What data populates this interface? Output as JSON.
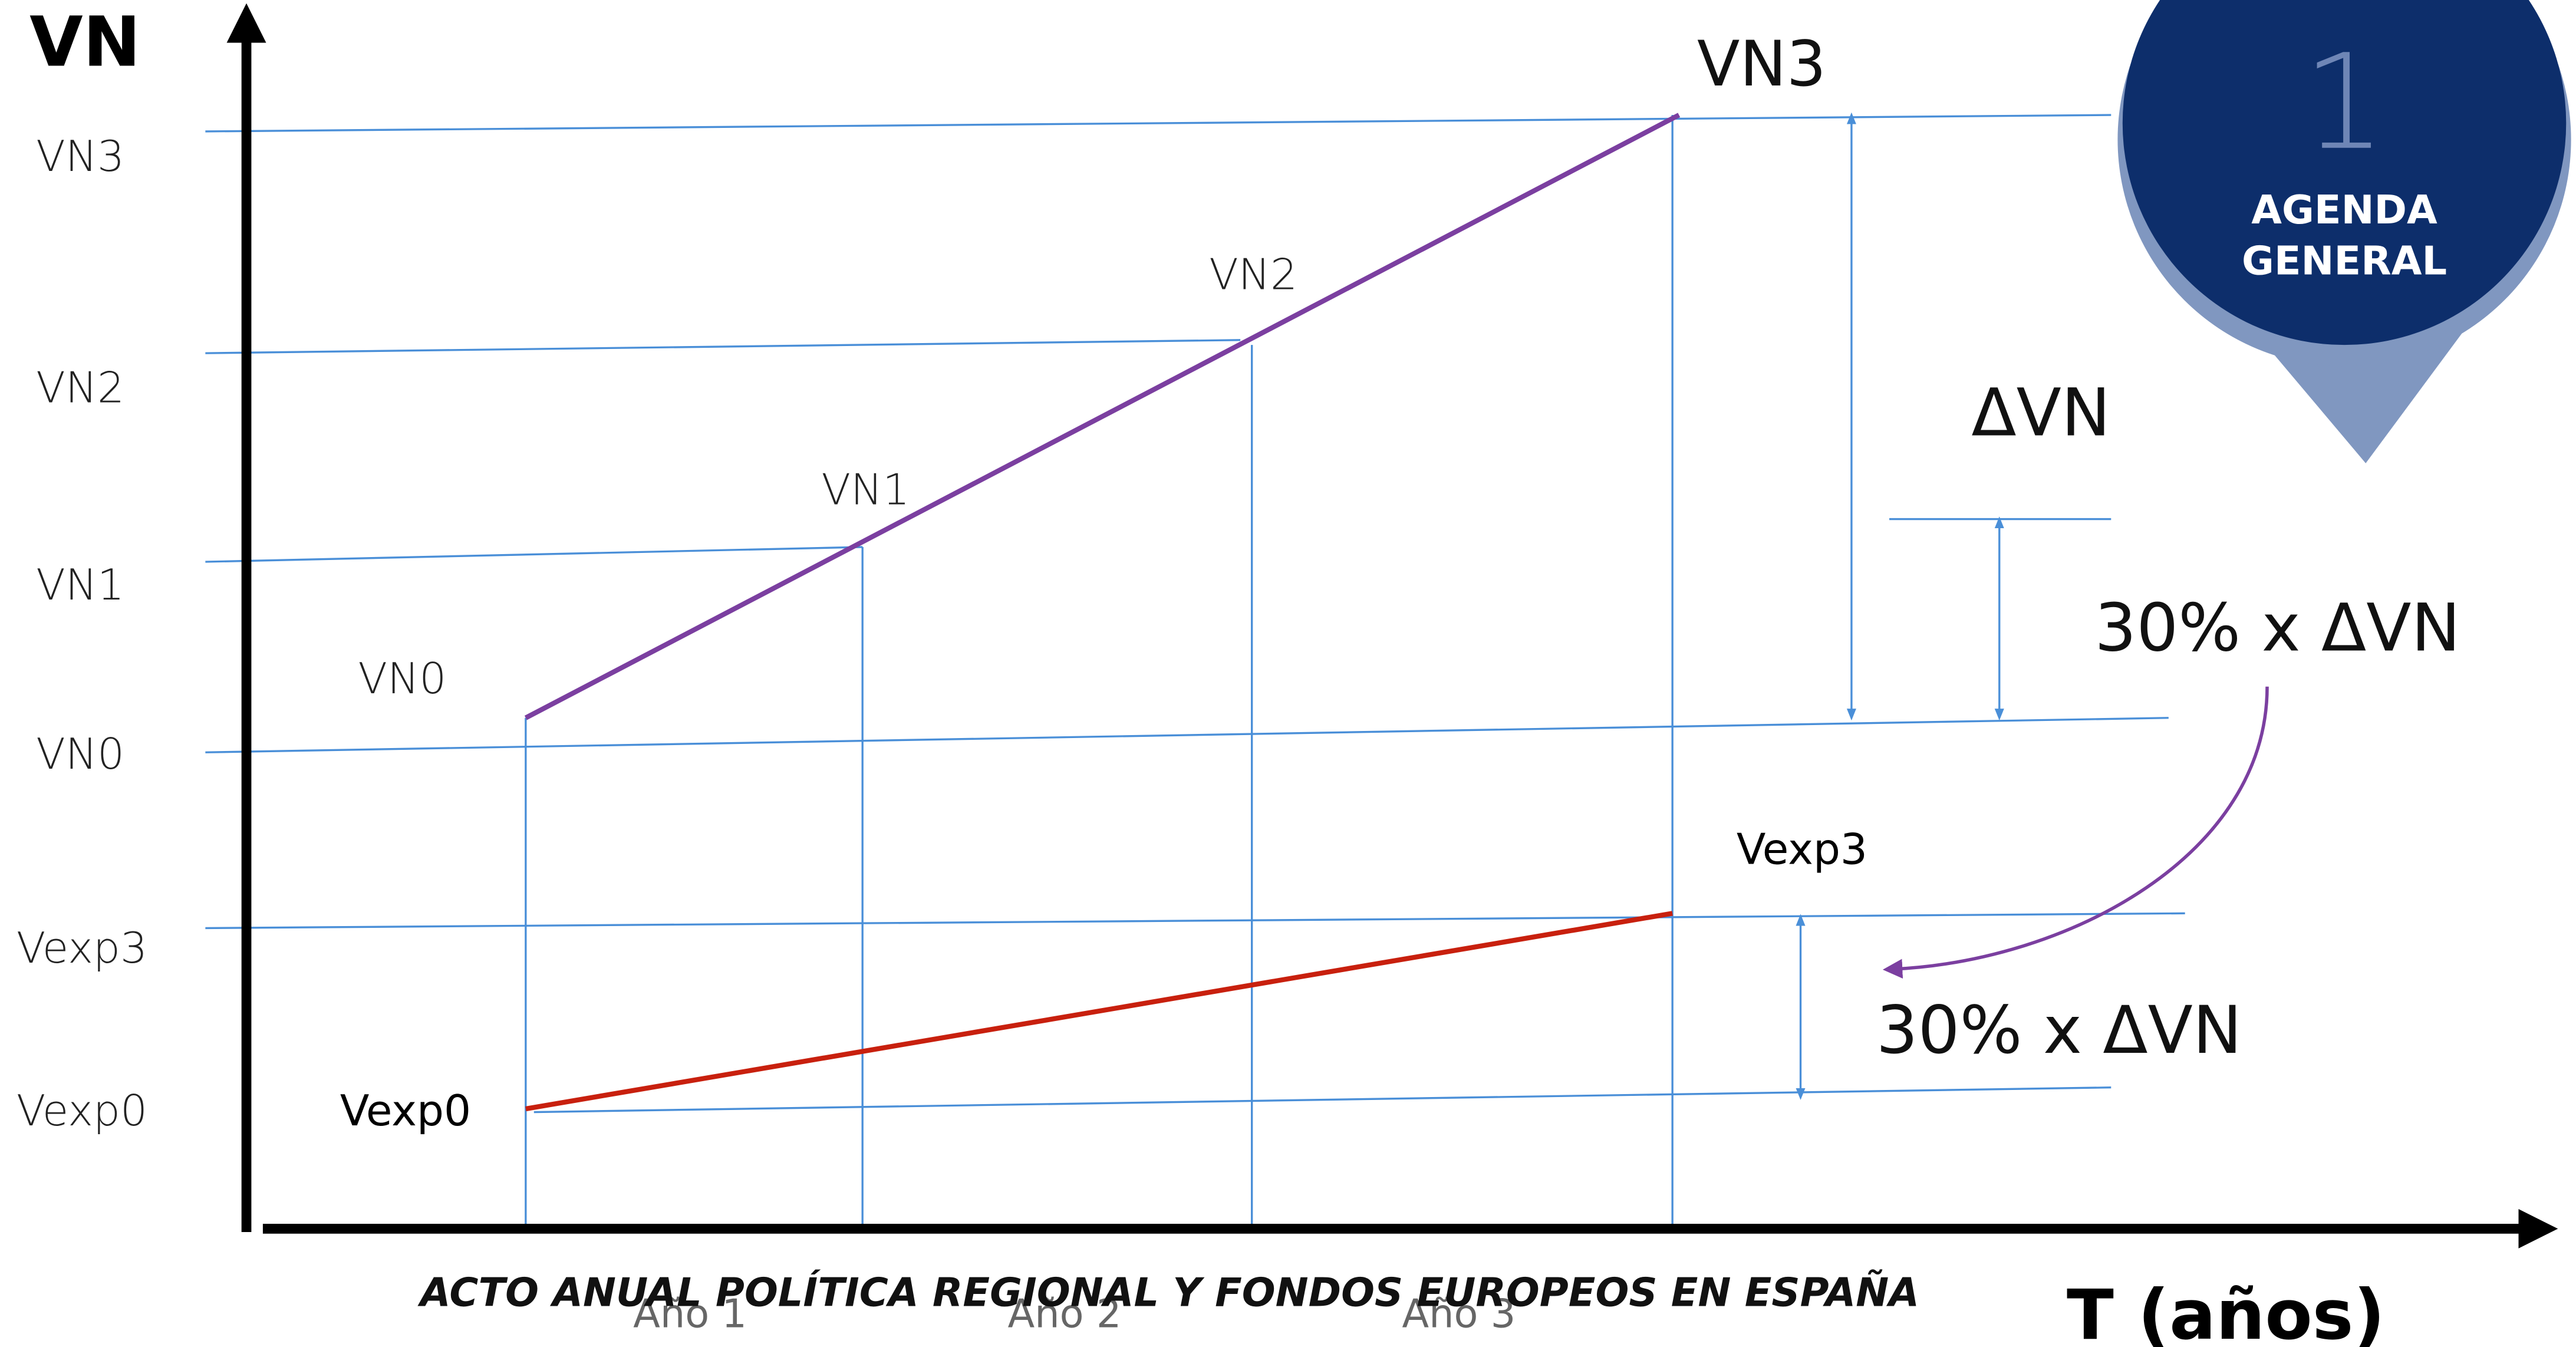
{
  "axes": {
    "y_label": "VN",
    "x_label": "T (años)"
  },
  "y_labels": [
    "VN3",
    "VN2",
    "VN1",
    "VN0",
    "Vexp3",
    "Vexp0"
  ],
  "point_labels": {
    "vn0": "VN0",
    "vn1": "VN1",
    "vn2": "VN2",
    "vn3": "VN3",
    "vexp0": "Vexp0",
    "vexp3": "Vexp3"
  },
  "x_labels": [
    "Año 1",
    "Año 2",
    "Año 3"
  ],
  "annotations": {
    "delta": "ΔVN",
    "share_top": "30% x ΔVN",
    "share_bottom": "30% x ΔVN"
  },
  "footer": "ACTO ANUAL POLÍTICA REGIONAL Y FONDOS EUROPEOS EN ESPAÑA",
  "badge": {
    "number": "1",
    "lines": [
      "AGENDA",
      "GENERAL"
    ]
  }
}
